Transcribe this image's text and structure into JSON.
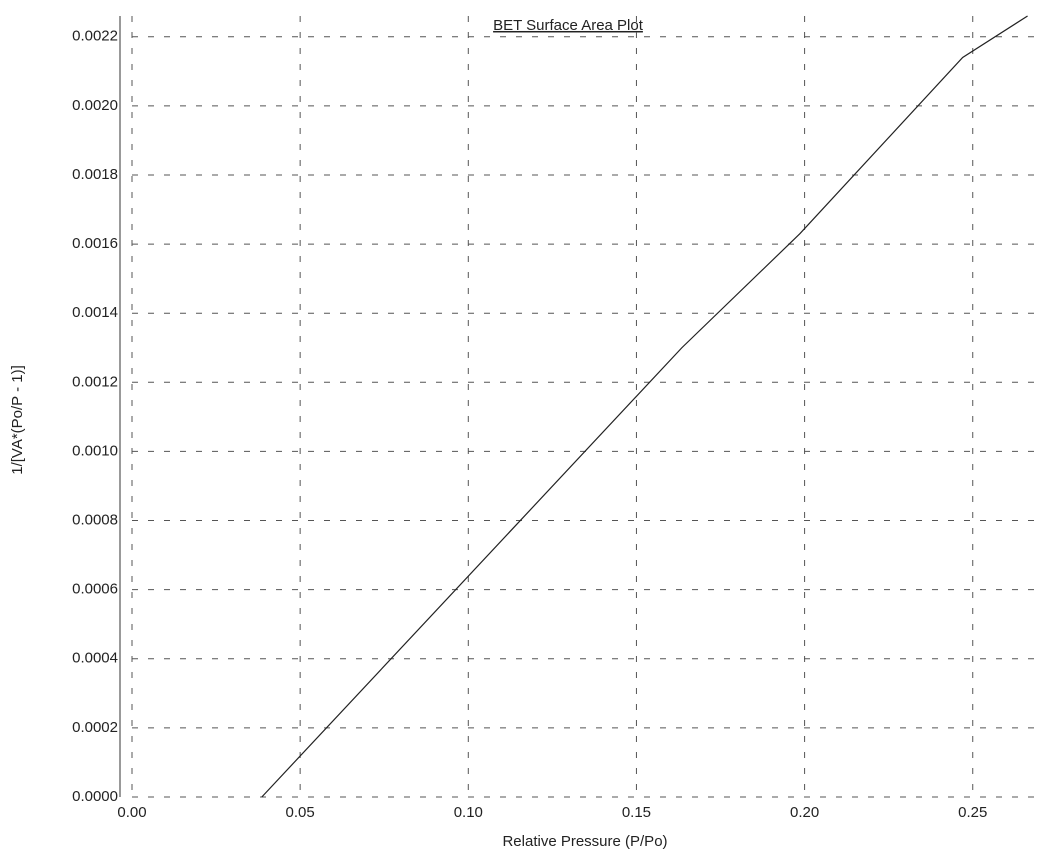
{
  "chart_data": {
    "type": "line",
    "title": "BET Surface Area Plot",
    "x_label": "Relative Pressure (P/Po)",
    "y_label": "1/[VA*(Po/P - 1)]",
    "series": [
      {
        "color": "#222222",
        "x": [
          0.0386,
          0.1635,
          0.1986,
          0.247,
          0.2663
        ],
        "values": [
          0,
          0.0013,
          0.00163,
          0.00214,
          0.00226
        ]
      }
    ],
    "xlim": [
      0,
      0.27
    ],
    "ylim": [
      0,
      0.00226
    ],
    "xticks": [
      {
        "value": 0,
        "label": "0.00"
      },
      {
        "value": 0.05,
        "label": "0.05"
      },
      {
        "value": 0.1,
        "label": "0.10"
      },
      {
        "value": 0.15,
        "label": "0.15"
      },
      {
        "value": 0.2,
        "label": "0.20"
      },
      {
        "value": 0.25,
        "label": "0.25"
      }
    ],
    "yticks": [
      {
        "value": 0,
        "label": "0.0000"
      },
      {
        "value": 0.0002,
        "label": "0.0002"
      },
      {
        "value": 0.0004,
        "label": "0.0004"
      },
      {
        "value": 0.0006,
        "label": "0.0006"
      },
      {
        "value": 0.0008,
        "label": "0.0008"
      },
      {
        "value": 0.001,
        "label": "0.0010"
      },
      {
        "value": 0.0012,
        "label": "0.0012"
      },
      {
        "value": 0.0014,
        "label": "0.0014"
      },
      {
        "value": 0.0016,
        "label": "0.0016"
      },
      {
        "value": 0.0018,
        "label": "0.0018"
      },
      {
        "value": 0.002,
        "label": "0.0020"
      },
      {
        "value": 0.0022,
        "label": "0.0022"
      }
    ],
    "grid": true
  }
}
